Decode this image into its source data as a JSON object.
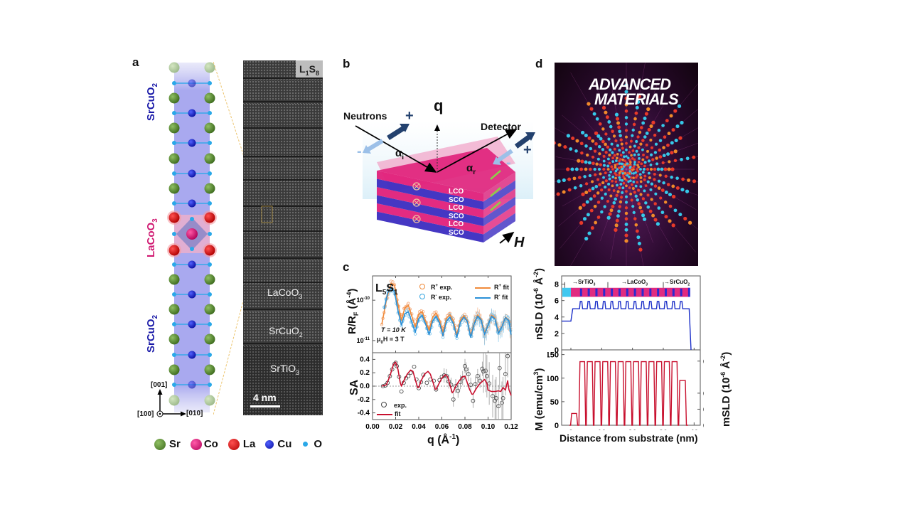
{
  "panel_labels": {
    "a": "a",
    "b": "b",
    "c": "c",
    "d": "d"
  },
  "panel_a": {
    "layers": [
      {
        "label": "SrCuO",
        "sub": "2",
        "color": "#1a1aa8"
      },
      {
        "label": "LaCoO",
        "sub": "3",
        "color": "#d01871"
      },
      {
        "label": "SrCuO",
        "sub": "2",
        "color": "#1a1aa8"
      }
    ],
    "axes": {
      "up": "[001]",
      "right": "[010]",
      "out": "[100]"
    },
    "legend": [
      {
        "name": "Sr",
        "color": "#4f7f2a"
      },
      {
        "name": "Co",
        "color": "#e0187a"
      },
      {
        "name": "La",
        "color": "#d40f10"
      },
      {
        "name": "Cu",
        "color": "#1020c8"
      },
      {
        "name": "O",
        "color": "#2aa8e8"
      }
    ],
    "stem": {
      "sample": {
        "main": "L",
        "s1": "1",
        "mid": "S",
        "s2": "8"
      },
      "layers": [
        {
          "main": "LaCoO",
          "sub": "3"
        },
        {
          "main": "SrCuO",
          "sub": "2"
        },
        {
          "main": "SrTiO",
          "sub": "3"
        }
      ],
      "scalebar": "4 nm"
    }
  },
  "panel_b": {
    "neutrons": "Neutrons",
    "detector": "Detector",
    "q": "q",
    "alpha_i": "α",
    "alpha_i_sub": "i",
    "alpha_r": "α",
    "alpha_r_sub": "r",
    "plus": "+",
    "minus": "-",
    "field": "H",
    "stack_labels": [
      "LCO",
      "SCO",
      "LCO",
      "SCO",
      "LCO",
      "SCO"
    ],
    "colors": {
      "lco": "#e0207a",
      "sco": "#3b2cc0"
    }
  },
  "panel_d": {
    "cover_title_1": "ADVANCED",
    "cover_title_2": "MATERIALS"
  },
  "chart_data": [
    {
      "type": "scatter",
      "title": "",
      "panel": "c-top",
      "sample_label": {
        "main": "L",
        "s1": "5",
        "mid": "S",
        "s2": "1"
      },
      "ylabel": {
        "main": "R/R",
        "sub": "F",
        "unit": " (Å",
        "sup": "-4",
        "close": ")"
      },
      "yscale": "log",
      "ylim": [
        5e-12,
        4e-10
      ],
      "xlim": [
        0.0,
        0.12
      ],
      "yticks": [
        {
          "label": "10",
          "sup": "-10",
          "value": 1e-10
        },
        {
          "label": "10",
          "sup": "-11",
          "value": 1e-11
        }
      ],
      "annotations": [
        {
          "text": "T = 10 K"
        },
        {
          "text": "μ",
          "sub": "0",
          "rest": "H = 3 T"
        }
      ],
      "legend": [
        {
          "name": "R",
          "sup": "+",
          "rest": " exp.",
          "color": "#f08a3a",
          "kind": "marker"
        },
        {
          "name": "R",
          "sup": "-",
          "rest": " exp.",
          "color": "#38a6e0",
          "kind": "marker"
        },
        {
          "name": "R",
          "sup": "+",
          "rest": " fit",
          "color": "#f08a3a",
          "kind": "line"
        },
        {
          "name": "R",
          "sup": "-",
          "rest": " fit",
          "color": "#2a90d8",
          "kind": "line"
        }
      ],
      "series": [
        {
          "name": "R+ fit",
          "color": "#f08a3a",
          "x": [
            0.008,
            0.012,
            0.016,
            0.019,
            0.022,
            0.025,
            0.028,
            0.031,
            0.034,
            0.037,
            0.04,
            0.043,
            0.046,
            0.049,
            0.052,
            0.055,
            0.058,
            0.061,
            0.064,
            0.067,
            0.07,
            0.073,
            0.076,
            0.079,
            0.082,
            0.085,
            0.088,
            0.091,
            0.094,
            0.097,
            0.1,
            0.103,
            0.106,
            0.109,
            0.112,
            0.115,
            0.118,
            0.12
          ],
          "y": [
            2.5e-11,
            1e-10,
            2.6e-10,
            2.4e-10,
            8e-11,
            3.2e-11,
            6.5e-11,
            7.5e-11,
            4e-11,
            2.2e-11,
            4.6e-11,
            5.2e-11,
            3e-11,
            1.8e-11,
            3.8e-11,
            4.8e-11,
            3.2e-11,
            1.6e-11,
            3.6e-11,
            4.4e-11,
            3e-11,
            1.4e-11,
            3.2e-11,
            4.2e-11,
            3.2e-11,
            1.3e-11,
            2.8e-11,
            4.3e-11,
            3.4e-11,
            1.5e-11,
            2.5e-11,
            4.2e-11,
            3.6e-11,
            1.6e-11,
            2.2e-11,
            3.8e-11,
            3.2e-11,
            1.4e-11
          ]
        },
        {
          "name": "R- fit",
          "color": "#2a90d8",
          "x": [
            0.01,
            0.013,
            0.016,
            0.019,
            0.022,
            0.025,
            0.028,
            0.031,
            0.034,
            0.037,
            0.04,
            0.043,
            0.046,
            0.049,
            0.052,
            0.055,
            0.058,
            0.061,
            0.064,
            0.067,
            0.07,
            0.073,
            0.076,
            0.079,
            0.082,
            0.085,
            0.088,
            0.091,
            0.094,
            0.097,
            0.1,
            0.103,
            0.106,
            0.109,
            0.112,
            0.115,
            0.118,
            0.12
          ],
          "y": [
            6e-11,
            1.5e-10,
            2e-10,
            1.6e-10,
            5.5e-11,
            2.4e-11,
            4.6e-11,
            5.2e-11,
            2.8e-11,
            1.6e-11,
            3.5e-11,
            4.2e-11,
            2.5e-11,
            1.4e-11,
            3e-11,
            4e-11,
            2.7e-11,
            1.3e-11,
            3e-11,
            3.8e-11,
            2.6e-11,
            1.2e-11,
            2.8e-11,
            3.8e-11,
            3e-11,
            1.2e-11,
            2.6e-11,
            4e-11,
            3.2e-11,
            1.4e-11,
            2.4e-11,
            4e-11,
            3.4e-11,
            1.5e-11,
            2.2e-11,
            3.7e-11,
            3.1e-11,
            1.4e-11
          ]
        }
      ]
    },
    {
      "type": "scatter",
      "panel": "c-bottom",
      "ylabel": "SA",
      "xlabel": {
        "main": "q (Å",
        "sup": "-1",
        "close": ")"
      },
      "xlim": [
        0.0,
        0.12
      ],
      "ylim": [
        -0.5,
        0.5
      ],
      "xticks": [
        "0.00",
        "0.02",
        "0.04",
        "0.06",
        "0.08",
        "0.10",
        "0.12"
      ],
      "xtick_values": [
        0.0,
        0.02,
        0.04,
        0.06,
        0.08,
        0.1,
        0.12
      ],
      "yticks": [
        "0.4",
        "0.2",
        "0.0",
        "-0.2",
        "-0.4"
      ],
      "ytick_values": [
        0.4,
        0.2,
        0.0,
        -0.2,
        -0.4
      ],
      "legend": [
        {
          "name": "exp.",
          "kind": "marker",
          "color": "#444444"
        },
        {
          "name": "fit",
          "kind": "line",
          "color": "#c8102e"
        }
      ],
      "series": [
        {
          "name": "fit",
          "color": "#c8102e",
          "x": [
            0.008,
            0.012,
            0.015,
            0.018,
            0.02,
            0.022,
            0.024,
            0.025,
            0.027,
            0.03,
            0.033,
            0.035,
            0.037,
            0.039,
            0.04,
            0.042,
            0.045,
            0.048,
            0.05,
            0.052,
            0.054,
            0.055,
            0.057,
            0.06,
            0.063,
            0.065,
            0.067,
            0.069,
            0.07,
            0.072,
            0.075,
            0.078,
            0.08,
            0.082,
            0.084,
            0.086,
            0.087,
            0.089,
            0.092,
            0.095,
            0.097,
            0.099,
            0.1,
            0.103,
            0.106,
            0.109,
            0.111,
            0.113,
            0.115,
            0.117,
            0.118,
            0.12
          ],
          "y": [
            0.0,
            0.02,
            0.15,
            0.32,
            0.36,
            0.25,
            0.05,
            0.0,
            0.08,
            0.18,
            0.24,
            0.22,
            0.1,
            -0.02,
            -0.02,
            0.08,
            0.18,
            0.22,
            0.18,
            0.08,
            -0.04,
            -0.05,
            0.02,
            0.12,
            0.17,
            0.14,
            0.02,
            -0.1,
            -0.08,
            0.0,
            0.08,
            0.14,
            0.15,
            0.05,
            -0.05,
            -0.12,
            -0.12,
            -0.06,
            0.02,
            0.07,
            0.1,
            0.04,
            -0.06,
            -0.08,
            -0.08,
            -0.07,
            -0.08,
            -0.02,
            -0.06,
            0.08,
            -0.05,
            -0.14
          ]
        },
        {
          "name": "exp.",
          "color": "#444444",
          "x": [
            0.009,
            0.011,
            0.013,
            0.015,
            0.017,
            0.019,
            0.02,
            0.021,
            0.023,
            0.025,
            0.027,
            0.029,
            0.031,
            0.033,
            0.036,
            0.038,
            0.04,
            0.042,
            0.044,
            0.047,
            0.05,
            0.053,
            0.055,
            0.058,
            0.06,
            0.062,
            0.064,
            0.066,
            0.068,
            0.07,
            0.072,
            0.074,
            0.076,
            0.078,
            0.08,
            0.081,
            0.083,
            0.085,
            0.087,
            0.089,
            0.091,
            0.093,
            0.095,
            0.096,
            0.098,
            0.099,
            0.101,
            0.104,
            0.106,
            0.107,
            0.109,
            0.11,
            0.112,
            0.113,
            0.115,
            0.117
          ],
          "y": [
            0.0,
            0.01,
            0.05,
            0.15,
            0.25,
            0.33,
            0.35,
            0.3,
            0.14,
            -0.08,
            0.05,
            0.12,
            0.15,
            0.2,
            0.29,
            0.1,
            -0.03,
            0.06,
            0.17,
            0.05,
            0.1,
            0.08,
            -0.05,
            0.09,
            0.14,
            0.16,
            0.15,
            0.07,
            0.02,
            -0.2,
            0.0,
            -0.07,
            0.06,
            0.12,
            0.3,
            0.25,
            0.18,
            0.02,
            -0.22,
            0.03,
            0.15,
            0.08,
            0.26,
            0.22,
            0.23,
            0.15,
            0.04,
            -0.15,
            -0.22,
            -0.18,
            -0.3,
            0.27,
            -0.25,
            -0.18,
            0.18,
            0.45
          ]
        }
      ]
    },
    {
      "type": "line",
      "panel": "d-top",
      "ylabel": {
        "main": "nSLD (10",
        "sup": "-6",
        "mid": " Å",
        "sup2": "-2",
        "close": ")"
      },
      "xlim": [
        -3,
        42
      ],
      "ylim": [
        0,
        9
      ],
      "yticks": [
        "8",
        "6",
        "4",
        "2",
        "0"
      ],
      "ytick_values": [
        8,
        6,
        4,
        2,
        0
      ],
      "layer_labels": [
        {
          "main": "SrTiO",
          "sub": "3"
        },
        {
          "main": "LaCoO",
          "sub": "3"
        },
        {
          "main": "SrCuO",
          "sub": "2"
        }
      ],
      "layer_colors": {
        "srtio3": "#40c8f0",
        "lacoo3": "#e02a80",
        "srcuo2": "#2a2ad0"
      },
      "series": [
        {
          "name": "nSLD",
          "color": "#1a2ec8",
          "x": [
            -3,
            0,
            0.6,
            1.2,
            38.4,
            38.7,
            39
          ],
          "y": [
            3.5,
            3.5,
            5.0,
            5.0,
            5.0,
            0.5,
            0
          ],
          "peaks_x": [
            3.3,
            5.8,
            8.3,
            10.8,
            13.3,
            15.8,
            18.3,
            20.8,
            23.3,
            25.8,
            28.3,
            30.8,
            33.3,
            35.8
          ],
          "peak_value": 5.9,
          "base_value": 5.0
        }
      ]
    },
    {
      "type": "line",
      "panel": "d-bottom",
      "ylabel": {
        "main": "M (emu/cm",
        "sup": "3",
        "close": ")"
      },
      "y2label": {
        "main": "mSLD (10",
        "sup": "-6",
        "mid": " Å",
        "sup2": "-2",
        "close": ")"
      },
      "xlabel": "Distance from substrate (nm)",
      "xlim": [
        -3,
        42
      ],
      "ylim": [
        0,
        160
      ],
      "y2lim": [
        0,
        0.47
      ],
      "xticks": [
        "0",
        "10",
        "20",
        "30",
        "40"
      ],
      "xtick_values": [
        0,
        10,
        20,
        30,
        40
      ],
      "yticks": [
        "150",
        "100",
        "50",
        "0"
      ],
      "ytick_values": [
        150,
        100,
        50,
        0
      ],
      "y2ticks": [
        "0.4",
        "0.2",
        "0.1",
        "0.0"
      ],
      "y2tick_values": [
        0.4,
        0.2,
        0.1,
        0.0
      ],
      "series": [
        {
          "name": "M",
          "color": "#c8102e",
          "blocks": [
            {
              "x0": 0.1,
              "x1": 2.0,
              "value": 25
            },
            {
              "x0": 2.8,
              "x1": 4.6,
              "value": 135
            },
            {
              "x0": 5.2,
              "x1": 7.1,
              "value": 135
            },
            {
              "x0": 7.7,
              "x1": 9.6,
              "value": 135
            },
            {
              "x0": 10.2,
              "x1": 12.1,
              "value": 135
            },
            {
              "x0": 12.7,
              "x1": 14.6,
              "value": 135
            },
            {
              "x0": 15.2,
              "x1": 17.1,
              "value": 135
            },
            {
              "x0": 17.7,
              "x1": 19.6,
              "value": 135
            },
            {
              "x0": 20.2,
              "x1": 22.1,
              "value": 135
            },
            {
              "x0": 22.7,
              "x1": 24.6,
              "value": 135
            },
            {
              "x0": 25.2,
              "x1": 27.1,
              "value": 135
            },
            {
              "x0": 27.7,
              "x1": 29.6,
              "value": 135
            },
            {
              "x0": 30.2,
              "x1": 32.1,
              "value": 135
            },
            {
              "x0": 32.7,
              "x1": 34.6,
              "value": 135
            },
            {
              "x0": 35.2,
              "x1": 37.3,
              "value": 95
            }
          ]
        }
      ]
    }
  ]
}
